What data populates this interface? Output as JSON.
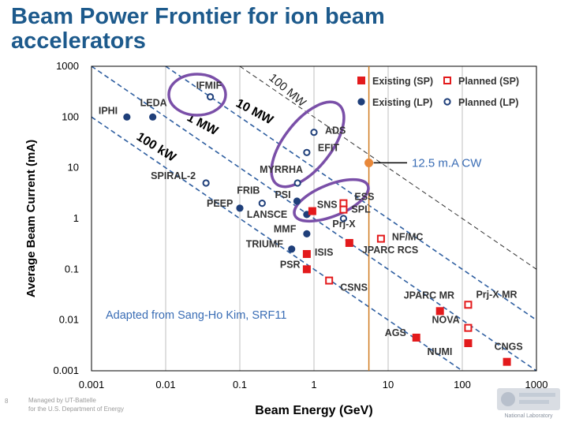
{
  "slide": {
    "title": "Beam Power Frontier for ion beam accelerators",
    "footer_page": "8",
    "footer_managed": "Managed by UT-Battelle",
    "footer_doe": "for the U.S. Department of Energy",
    "citation": "Adapted from Sang-Ho Kim, SRF11",
    "cw_label": "12.5 m.A CW",
    "logo_caption": "National Laboratory"
  },
  "colors": {
    "title": "#1d5a8c",
    "axes": "#000000",
    "grid": "#bfbfbf",
    "power_lines": "#2e5ea0",
    "red_marker": "#e31a1c",
    "blue_marker": "#1f3f7a",
    "ellipse": "#7a4fa8",
    "cw_line": "#d07a1e",
    "cw_point": "#e8883a",
    "annotation": "#3a6db5"
  },
  "chart_data": {
    "type": "scatter",
    "xlabel": "Beam Energy (GeV)",
    "ylabel": "Average Beam Current (mA)",
    "x_scale": "log",
    "y_scale": "log",
    "xlim": [
      0.001,
      1000
    ],
    "ylim": [
      0.001,
      1000
    ],
    "x_ticks": [
      "0.001",
      "0.01",
      "0.1",
      "1",
      "10",
      "100",
      "1000"
    ],
    "y_ticks": [
      "1000",
      "100",
      "10",
      "1",
      "0.1",
      "0.01",
      "0.001"
    ],
    "grid": "vertical",
    "legend_position": "top-right",
    "legend": [
      {
        "label": "Existing (SP)",
        "marker": "square",
        "filled": true,
        "color": "#e31a1c"
      },
      {
        "label": "Planned (SP)",
        "marker": "square",
        "filled": false,
        "color": "#e31a1c"
      },
      {
        "label": "Existing (LP)",
        "marker": "circle",
        "filled": true,
        "color": "#1f3f7a"
      },
      {
        "label": "Planned (LP)",
        "marker": "circle",
        "filled": false,
        "color": "#1f3f7a"
      }
    ],
    "power_lines": [
      {
        "label": "100 MW",
        "mw": 100
      },
      {
        "label": "10 MW",
        "mw": 10
      },
      {
        "label": "1 MW",
        "mw": 1
      },
      {
        "label": "100 kW",
        "mw": 0.1
      }
    ],
    "vertical_line_x": 5.5,
    "highlight_point": {
      "x": 5.5,
      "y": 12.5
    },
    "points": [
      {
        "label": "IPHI",
        "x": 0.003,
        "y": 100,
        "group": "Existing (LP)"
      },
      {
        "label": "LEDA",
        "x": 0.0067,
        "y": 100,
        "group": "Existing (LP)"
      },
      {
        "label": "IFMIF",
        "x": 0.04,
        "y": 250,
        "group": "Planned (LP)"
      },
      {
        "label": "SPIRAL-2",
        "x": 0.035,
        "y": 5,
        "group": "Planned (LP)"
      },
      {
        "label": "PEEP",
        "x": 0.1,
        "y": 1.6,
        "group": "Existing (LP)"
      },
      {
        "label": "FRIB",
        "x": 0.2,
        "y": 2,
        "group": "Planned (LP)"
      },
      {
        "label": "MYRRHA",
        "x": 0.6,
        "y": 5,
        "group": "Planned (LP)"
      },
      {
        "label": "PSI",
        "x": 0.59,
        "y": 2.2,
        "group": "Existing (LP)"
      },
      {
        "label": "ADS",
        "x": 1,
        "y": 50,
        "group": "Planned (LP)"
      },
      {
        "label": "EFIT",
        "x": 0.8,
        "y": 20,
        "group": "Planned (LP)"
      },
      {
        "label": "LANSCE",
        "x": 0.8,
        "y": 1.2,
        "group": "Existing (LP)"
      },
      {
        "label": "MMF",
        "x": 0.8,
        "y": 0.5,
        "group": "Existing (LP)"
      },
      {
        "label": "TRIUMF",
        "x": 0.5,
        "y": 0.25,
        "group": "Existing (LP)"
      },
      {
        "label": "SNS",
        "x": 0.95,
        "y": 1.4,
        "group": "Existing (SP)"
      },
      {
        "label": "ESS",
        "x": 2.5,
        "y": 2,
        "group": "Planned (SP)"
      },
      {
        "label": "SPL",
        "x": 2.5,
        "y": 1.5,
        "group": "Planned (SP)"
      },
      {
        "label": "Prj-X",
        "x": 2.5,
        "y": 1,
        "group": "Planned (LP)"
      },
      {
        "label": "ISIS",
        "x": 0.8,
        "y": 0.2,
        "group": "Existing (SP)"
      },
      {
        "label": "PSR",
        "x": 0.8,
        "y": 0.1,
        "group": "Existing (SP)"
      },
      {
        "label": "JPARC RCS",
        "x": 3,
        "y": 0.33,
        "group": "Existing (SP)"
      },
      {
        "label": "NF/MC",
        "x": 8,
        "y": 0.4,
        "group": "Planned (SP)"
      },
      {
        "label": "CSNS",
        "x": 1.6,
        "y": 0.06,
        "group": "Planned (SP)"
      },
      {
        "label": "JPARC MR",
        "x": 50,
        "y": 0.015,
        "group": "Existing (SP)"
      },
      {
        "label": "Prj-X MR",
        "x": 120,
        "y": 0.02,
        "group": "Planned (SP)"
      },
      {
        "label": "NOVA",
        "x": 120,
        "y": 0.007,
        "group": "Planned (SP)"
      },
      {
        "label": "AGS",
        "x": 24,
        "y": 0.0045,
        "group": "Existing (SP)"
      },
      {
        "label": "NUMI",
        "x": 120,
        "y": 0.0035,
        "group": "Existing (SP)"
      },
      {
        "label": "CNGS",
        "x": 400,
        "y": 0.0015,
        "group": "Existing (SP)"
      }
    ]
  }
}
